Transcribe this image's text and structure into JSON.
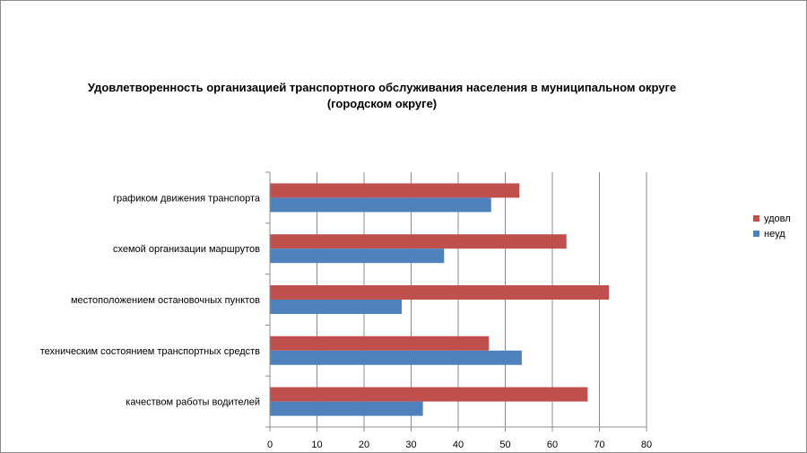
{
  "chart_data": {
    "type": "bar",
    "orientation": "horizontal",
    "title_line1": "Удовлетворенность организацией транспортного обслуживания населения в муниципальном округе",
    "title_line2": "(городском округе)",
    "categories": [
      "графиком движения транспорта",
      "схемой организации маршрутов",
      "местоположением остановочных пунктов",
      "техническим состоянием транспортных средств",
      "качеством работы водителей"
    ],
    "series": [
      {
        "name": "удовл",
        "color": "#c0504d",
        "values": [
          53,
          63,
          72,
          46.5,
          67.5
        ]
      },
      {
        "name": "неуд",
        "color": "#4f81bd",
        "values": [
          47,
          37,
          28,
          53.5,
          32.5
        ]
      }
    ],
    "xlim": [
      0,
      80
    ],
    "xticks": [
      0,
      10,
      20,
      30,
      40,
      50,
      60,
      70,
      80
    ],
    "grid": "vertical",
    "legend_position": "right"
  }
}
